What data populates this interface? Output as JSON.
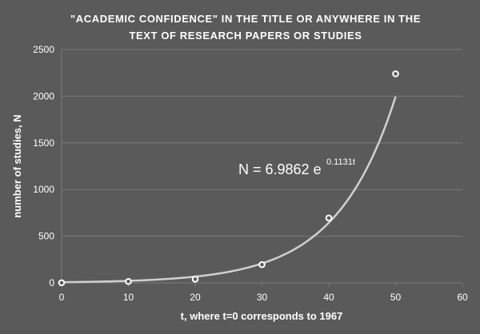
{
  "chart_data": {
    "type": "scatter",
    "title_lines": [
      "\"ACADEMIC CONFIDENCE\" IN THE TITLE OR ANYWHERE IN THE",
      "TEXT OF RESEARCH PAPERS OR STUDIES"
    ],
    "xlabel": "t, where t=0 corresponds to 1967",
    "ylabel": "number of studies, N",
    "xlim": [
      0,
      60
    ],
    "ylim": [
      0,
      2500
    ],
    "xticks": [
      0,
      10,
      20,
      30,
      40,
      50,
      60
    ],
    "yticks": [
      0,
      500,
      1000,
      1500,
      2000,
      2500
    ],
    "grid": {
      "horizontal": true,
      "vertical": false
    },
    "colors": {
      "background": "#5a5a5a",
      "grid": "#7a7a7a",
      "trendline": "#d0d0d0",
      "marker": "#ffffff"
    },
    "points": [
      {
        "x": 0,
        "y": 1
      },
      {
        "x": 10,
        "y": 15
      },
      {
        "x": 20,
        "y": 40
      },
      {
        "x": 30,
        "y": 195
      },
      {
        "x": 40,
        "y": 695
      },
      {
        "x": 50,
        "y": 2240
      }
    ],
    "trendline": {
      "type": "exponential",
      "a": 6.9862,
      "b": 0.1131,
      "x_range": [
        0,
        50
      ]
    },
    "equation": {
      "main": "N = 6.9862 e",
      "exponent": "0.1131t"
    }
  }
}
